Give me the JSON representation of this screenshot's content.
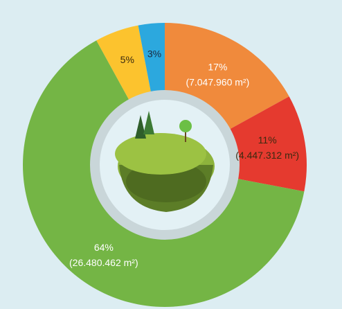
{
  "chart_data": {
    "type": "donut",
    "categories": [
      "Orange",
      "Red",
      "Green",
      "Yellow",
      "Blue"
    ],
    "values": [
      17,
      11,
      64,
      5,
      3
    ],
    "value_labels": [
      "17%",
      "11%",
      "64%",
      "5%",
      "3%"
    ],
    "area_labels": [
      "(7.047.960 m²)",
      "(4.447.312 m²)",
      "(26.480.462 m²)",
      null,
      null
    ],
    "colors": [
      "#f08a3c",
      "#e53a2f",
      "#74b545",
      "#fcc32e",
      "#2ca8de"
    ],
    "label_colors": [
      "#ffffff",
      "#3a2a10",
      "#ffffff",
      "#3a2a10",
      "#1a2a40"
    ]
  }
}
